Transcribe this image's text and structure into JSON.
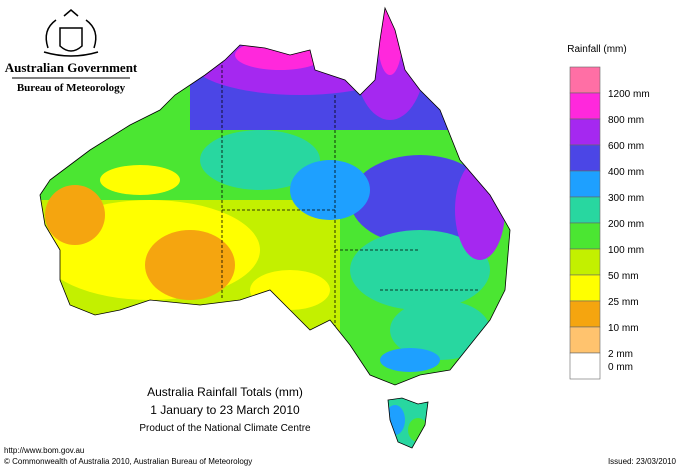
{
  "header": {
    "government": "Australian Government",
    "bureau": "Bureau of Meteorology"
  },
  "legend": {
    "title": "Rainfall (mm)",
    "colors": [
      "#ff6fa5",
      "#ff28dc",
      "#a528f0",
      "#4b46e6",
      "#1ea0ff",
      "#28d7a0",
      "#4be632",
      "#c3f000",
      "#ffff00",
      "#f5a50f",
      "#ffc36e",
      "#ffffff"
    ],
    "labels": [
      "1200 mm",
      "800 mm",
      "600 mm",
      "400 mm",
      "300 mm",
      "200 mm",
      "100 mm",
      "50 mm",
      "25 mm",
      "10 mm",
      "2 mm",
      "0 mm"
    ]
  },
  "map": {
    "title": "Australia Rainfall Totals (mm)",
    "period": "1 January to 23 March 2010",
    "product": "Product of the National Climate Centre"
  },
  "footer": {
    "url": "http://www.bom.gov.au",
    "copyright": "© Commonwealth of Australia 2010, Australian Bureau of Meteorology",
    "issued": "Issued: 23/03/2010"
  }
}
